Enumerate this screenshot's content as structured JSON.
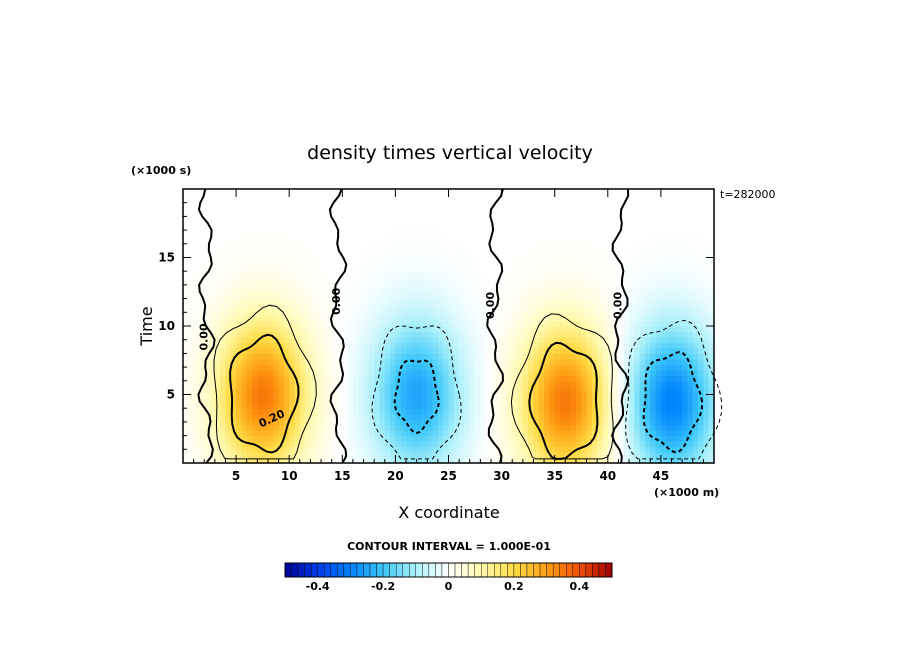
{
  "chart_data": {
    "type": "heatmap",
    "title": "density times vertical velocity",
    "xlabel": "X coordinate",
    "ylabel": "Time",
    "x_units": "(×1000 m)",
    "y_units": "(×1000 s)",
    "time_label": "t=282000",
    "xlim": [
      0,
      50
    ],
    "ylim": [
      0,
      20
    ],
    "x_ticks": [
      5,
      10,
      15,
      20,
      25,
      30,
      35,
      40,
      45
    ],
    "y_ticks": [
      5,
      10,
      15
    ],
    "contour_interval_text": "CONTOUR INTERVAL = 1.000E-01",
    "contour_labels": [
      "0.00",
      "0.00",
      "0.00",
      "0.00",
      "0.20"
    ],
    "colorbar": {
      "range": [
        -0.5,
        0.5
      ],
      "tick_values": [
        -0.4,
        -0.2,
        0,
        0.2,
        0.4
      ],
      "tick_labels": [
        "-0.4",
        "-0.2",
        "0",
        "0.2",
        "0.4"
      ]
    },
    "features": [
      {
        "kind": "positive",
        "x": 7.5,
        "y": 5,
        "peak": 0.35
      },
      {
        "kind": "negative",
        "x": 22,
        "y": 5,
        "peak": -0.25
      },
      {
        "kind": "positive",
        "x": 36,
        "y": 4.5,
        "peak": 0.35
      },
      {
        "kind": "negative",
        "x": 46,
        "y": 4.5,
        "peak": -0.3
      }
    ]
  }
}
